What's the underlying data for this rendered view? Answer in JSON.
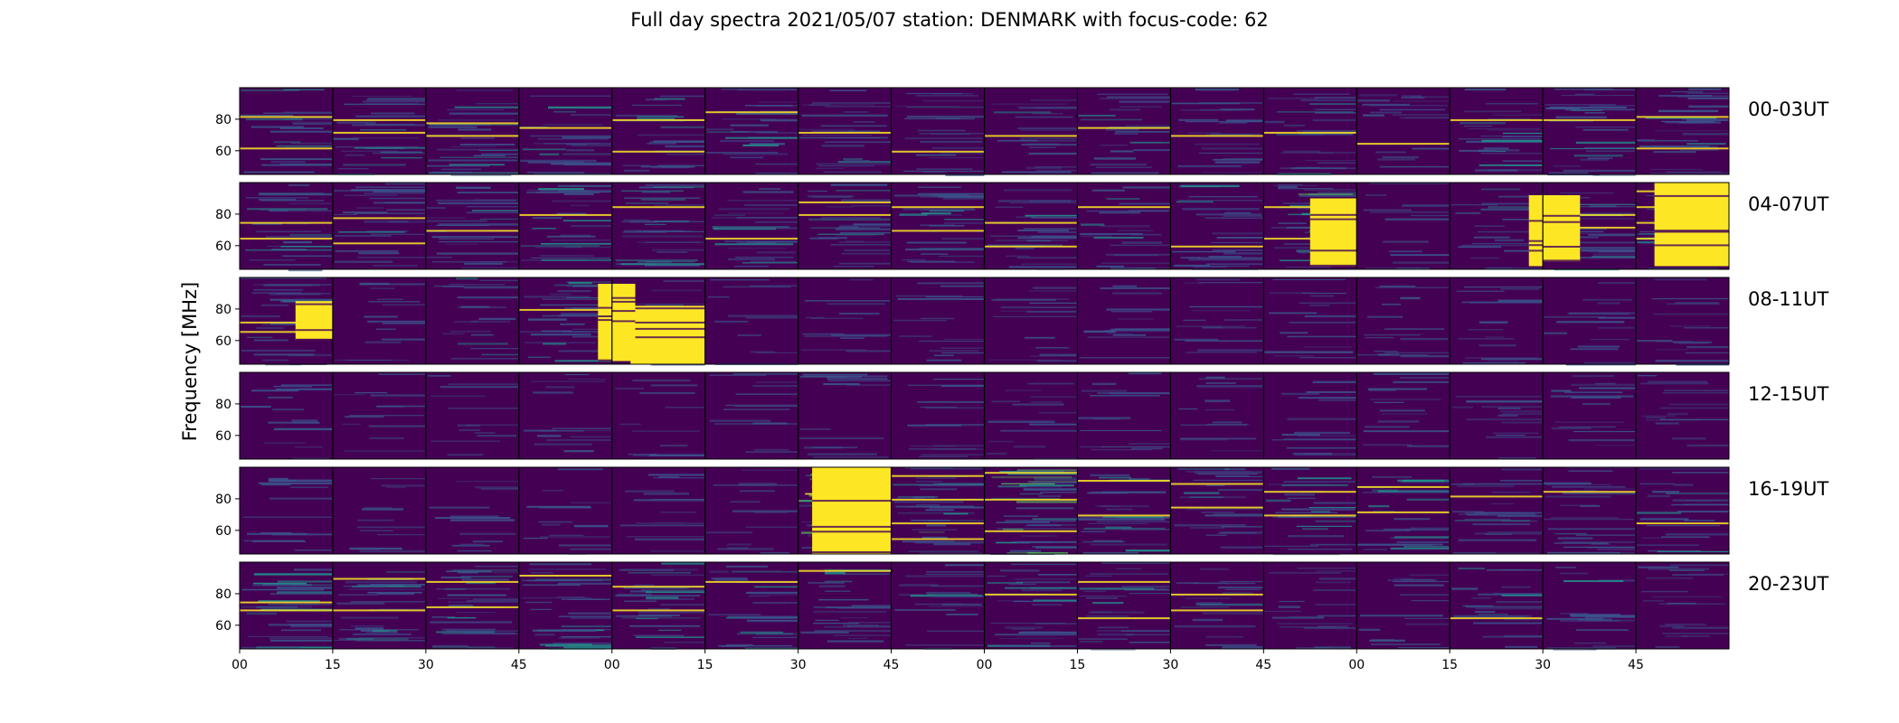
{
  "title": "Full day spectra 2021/05/07 station: DENMARK with focus-code: 62",
  "colors": {
    "background": "#440154",
    "colormap": [
      "#440154",
      "#3b528b",
      "#21918c",
      "#5ec962",
      "#fde725"
    ]
  },
  "chart_data": {
    "type": "heatmap",
    "title": "Full day spectra 2021/05/07 station: DENMARK with focus-code: 62",
    "ylabel": "Frequency [MHz]",
    "xlabel": "",
    "colormap": "viridis",
    "ylim": [
      45,
      100
    ],
    "y_ticks": [
      60,
      80
    ],
    "x_tick_labels": [
      "00",
      "15",
      "30",
      "45",
      "00",
      "15",
      "30",
      "45",
      "00",
      "15",
      "30",
      "45",
      "00",
      "15",
      "30",
      "45"
    ],
    "panels_per_row": 16,
    "rows": [
      {
        "label": "00-03UT",
        "intensity": [
          0.25,
          0.35,
          0.35,
          0.3,
          0.3,
          0.3,
          0.3,
          0.25,
          0.25,
          0.25,
          0.25,
          0.3,
          0.2,
          0.3,
          0.35,
          0.35
        ],
        "strong_lines": [
          [
            82,
            62
          ],
          [
            80,
            72
          ],
          [
            78,
            70
          ],
          [
            75
          ],
          [
            80,
            60
          ],
          [
            85
          ],
          [
            72
          ],
          [
            60
          ],
          [
            70
          ],
          [
            75
          ],
          [
            70
          ],
          [
            72
          ],
          [
            65
          ],
          [
            80
          ],
          [
            80
          ],
          [
            82,
            62
          ]
        ]
      },
      {
        "label": "04-07UT",
        "intensity": [
          0.3,
          0.35,
          0.3,
          0.35,
          0.4,
          0.3,
          0.35,
          0.4,
          0.3,
          0.25,
          0.3,
          0.45,
          0.1,
          0.2,
          0.3,
          0.5
        ],
        "strong_lines": [
          [
            75,
            65
          ],
          [
            78,
            62
          ],
          [
            70
          ],
          [
            80
          ],
          [
            85
          ],
          [
            65
          ],
          [
            88,
            80
          ],
          [
            85,
            70
          ],
          [
            75,
            60
          ],
          [
            85
          ],
          [
            60
          ],
          [
            85,
            65
          ],
          [],
          [],
          [
            80,
            72
          ],
          [
            95,
            85,
            75,
            65
          ]
        ]
      },
      {
        "label": "08-11UT",
        "intensity": [
          0.3,
          0.1,
          0.2,
          0.4,
          0.05,
          0.05,
          0.08,
          0.12,
          0.12,
          0.1,
          0.1,
          0.12,
          0.12,
          0.12,
          0.12,
          0.15
        ],
        "strong_lines": [
          [
            72,
            66
          ],
          [],
          [],
          [
            80
          ],
          [
            75
          ],
          [],
          [],
          [],
          [],
          [],
          [],
          [],
          [],
          [],
          [],
          []
        ]
      },
      {
        "label": "12-15UT",
        "intensity": [
          0.12,
          0.08,
          0.08,
          0.1,
          0.08,
          0.1,
          0.1,
          0.1,
          0.1,
          0.1,
          0.1,
          0.12,
          0.1,
          0.1,
          0.12,
          0.12
        ],
        "strong_lines": [
          [],
          [],
          [],
          [],
          [],
          [],
          [],
          [],
          [],
          [],
          [],
          [],
          [],
          [],
          [],
          []
        ]
      },
      {
        "label": "16-19UT",
        "intensity": [
          0.1,
          0.08,
          0.08,
          0.1,
          0.1,
          0.1,
          0.7,
          0.5,
          0.6,
          0.35,
          0.35,
          0.35,
          0.35,
          0.3,
          0.3,
          0.25
        ],
        "strong_lines": [
          [],
          [],
          [],
          [],
          [],
          [],
          [],
          [
            95,
            80,
            65,
            55
          ],
          [
            97,
            80,
            60
          ],
          [
            92,
            70
          ],
          [
            90,
            75
          ],
          [
            85,
            70
          ],
          [
            88,
            72
          ],
          [
            82
          ],
          [
            85
          ],
          [
            65
          ]
        ]
      },
      {
        "label": "20-23UT",
        "intensity": [
          0.4,
          0.4,
          0.4,
          0.4,
          0.4,
          0.35,
          0.3,
          0.2,
          0.35,
          0.3,
          0.25,
          0.2,
          0.15,
          0.25,
          0.2,
          0.2
        ],
        "strong_lines": [
          [
            75,
            70
          ],
          [
            90,
            70
          ],
          [
            88,
            72
          ],
          [
            92
          ],
          [
            85,
            70
          ],
          [
            88
          ],
          [
            95
          ],
          [],
          [
            80
          ],
          [
            88,
            65
          ],
          [
            80,
            70
          ],
          [],
          [],
          [
            65
          ],
          [],
          []
        ]
      }
    ],
    "bright_blocks": [
      {
        "row": 1,
        "panel": 15,
        "x0": 0.2,
        "x1": 1.0,
        "y0": 47,
        "y1": 100
      },
      {
        "row": 1,
        "panel": 13,
        "x0": 0.85,
        "x1": 1.0,
        "y0": 47,
        "y1": 92
      },
      {
        "row": 1,
        "panel": 14,
        "x0": 0.0,
        "x1": 0.4,
        "y0": 50,
        "y1": 92
      },
      {
        "row": 1,
        "panel": 11,
        "x0": 0.5,
        "x1": 1.0,
        "y0": 47,
        "y1": 90
      },
      {
        "row": 2,
        "panel": 4,
        "x0": 0.2,
        "x1": 1.0,
        "y0": 45,
        "y1": 82
      },
      {
        "row": 2,
        "panel": 3,
        "x0": 0.85,
        "x1": 1.0,
        "y0": 47,
        "y1": 96
      },
      {
        "row": 2,
        "panel": 4,
        "x0": 0.0,
        "x1": 0.25,
        "y0": 47,
        "y1": 96
      },
      {
        "row": 2,
        "panel": 0,
        "x0": 0.6,
        "x1": 1.0,
        "y0": 60,
        "y1": 85
      },
      {
        "row": 4,
        "panel": 6,
        "x0": 0.15,
        "x1": 1.0,
        "y0": 45,
        "y1": 100
      }
    ]
  }
}
